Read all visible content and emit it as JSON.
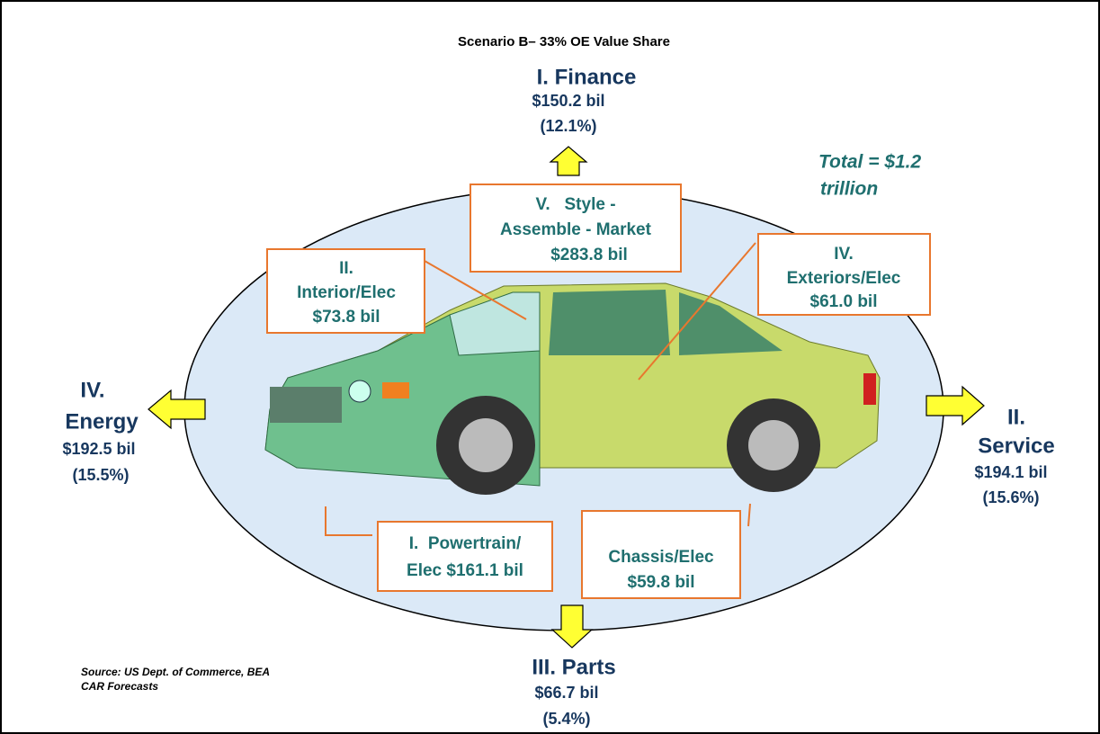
{
  "title": "Scenario B– 33% OE Value Share",
  "total": {
    "lines": [
      "Total = $1.2",
      "trillion"
    ]
  },
  "outer": [
    {
      "lines": [
        "I. Finance",
        "$150.2 bil",
        "(12.1%)"
      ]
    },
    {
      "lines": [
        "IV.",
        "Energy",
        "$192.5 bil",
        "(15.5%)"
      ]
    },
    {
      "lines": [
        "II.",
        "Service",
        "$194.1 bil",
        "(15.6%)"
      ]
    },
    {
      "lines": [
        "III. Parts",
        "$66.7 bil",
        "(5.4%)"
      ]
    }
  ],
  "boxes": [
    {
      "lines": [
        "V.   Style -",
        "Assemble - Market",
        "$283.8 bil"
      ]
    },
    {
      "lines": [
        "II.",
        "Interior/Elec",
        "$73.8 bil"
      ]
    },
    {
      "lines": [
        "IV.",
        "Exteriors/Elec",
        "$61.0 bil"
      ]
    },
    {
      "lines": [
        "I.  Powertrain/",
        "Elec $161.1 bil"
      ]
    },
    {
      "lines": [
        "Chassis/Elec",
        "$59.8 bil"
      ]
    }
  ],
  "source": {
    "lines": [
      "Source: US Dept. of Commerce, BEA",
      "CAR Forecasts"
    ]
  }
}
